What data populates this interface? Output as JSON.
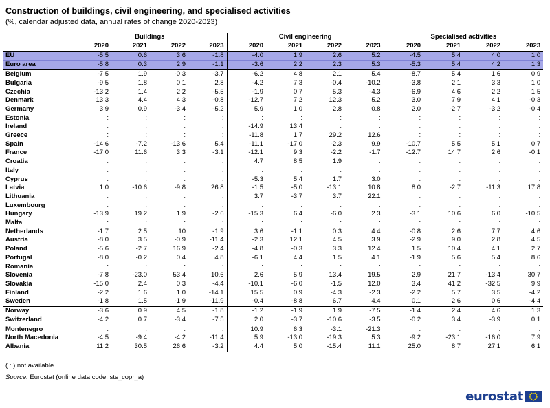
{
  "title": "Construction of buildings, civil engineering, and specialised activities",
  "subtitle": "(%, calendar adjusted data, annual rates of change 2020-2023)",
  "note": "( : ) not available",
  "source_label": "Source:",
  "source_text": "Eurostat (online data code: sts_copr_a)",
  "logo_text": "eurostat",
  "colors": {
    "highlight": "#a6a8e8",
    "logo": "#1d3f8f"
  },
  "chart_data": {
    "type": "table",
    "groups": [
      "Buildings",
      "Civil engineering",
      "Specialised activities"
    ],
    "years": [
      "2020",
      "2021",
      "2022",
      "2023"
    ],
    "rows": [
      {
        "label": "EU",
        "values": [
          "-5.5",
          "0.6",
          "3.6",
          "-1.8",
          "-4.0",
          "1.9",
          "2.6",
          "5.2",
          "-4.5",
          "5.4",
          "4.0",
          "1.0"
        ]
      },
      {
        "label": "Euro area",
        "values": [
          "-5.8",
          "0.3",
          "2.9",
          "-1.1",
          "-3.6",
          "2.2",
          "2.3",
          "5.3",
          "-5.3",
          "5.4",
          "4.2",
          "1.3"
        ]
      },
      {
        "label": "Belgium",
        "values": [
          "-7.5",
          "1.9",
          "-0.3",
          "-3.7",
          "-6.2",
          "4.8",
          "2.1",
          "5.4",
          "-8.7",
          "5.4",
          "1.6",
          "0.9"
        ]
      },
      {
        "label": "Bulgaria",
        "values": [
          "-9.5",
          "1.8",
          "0.1",
          "2.8",
          "-4.2",
          "7.3",
          "-0.4",
          "-10.2",
          "-3.8",
          "2.1",
          "3.3",
          "1.0"
        ]
      },
      {
        "label": "Czechia",
        "values": [
          "-13.2",
          "1.4",
          "2.2",
          "-5.5",
          "-1.9",
          "0.7",
          "5.3",
          "-4.3",
          "-6.9",
          "4.6",
          "2.2",
          "1.5"
        ]
      },
      {
        "label": "Denmark",
        "values": [
          "13.3",
          "4.4",
          "4.3",
          "-0.8",
          "-12.7",
          "7.2",
          "12.3",
          "5.2",
          "3.0",
          "7.9",
          "4.1",
          "-0.3"
        ]
      },
      {
        "label": "Germany",
        "values": [
          "3.9",
          "0.9",
          "-3.4",
          "-5.2",
          "5.9",
          "1.0",
          "2.8",
          "0.8",
          "2.0",
          "-2.7",
          "-3.2",
          "-0.4"
        ]
      },
      {
        "label": "Estonia",
        "values": [
          ":",
          ":",
          ":",
          ":",
          ":",
          ":",
          ":",
          ":",
          ":",
          ":",
          ":",
          ":"
        ]
      },
      {
        "label": "Ireland",
        "values": [
          ":",
          ":",
          ":",
          ":",
          "-14.9",
          "13.4",
          ":",
          ":",
          ":",
          ":",
          ":",
          ":"
        ]
      },
      {
        "label": "Greece",
        "values": [
          ":",
          ":",
          ":",
          ":",
          "-11.8",
          "1.7",
          "29.2",
          "12.6",
          ":",
          ":",
          ":",
          ":"
        ]
      },
      {
        "label": "Spain",
        "values": [
          "-14.6",
          "-7.2",
          "-13.6",
          "5.4",
          "-11.1",
          "-17.0",
          "-2.3",
          "9.9",
          "-10.7",
          "5.5",
          "5.1",
          "0.7"
        ]
      },
      {
        "label": "France",
        "values": [
          "-17.0",
          "11.6",
          "3.3",
          "-3.1",
          "-12.1",
          "9.3",
          "-2.2",
          "-1.7",
          "-12.7",
          "14.7",
          "2.6",
          "-0.1"
        ]
      },
      {
        "label": "Croatia",
        "values": [
          ":",
          ":",
          ":",
          ":",
          "4.7",
          "8.5",
          "1.9",
          ":",
          ":",
          ":",
          ":",
          ":"
        ]
      },
      {
        "label": "Italy",
        "values": [
          ":",
          ":",
          ":",
          ":",
          ":",
          ":",
          ":",
          ":",
          ":",
          ":",
          ":",
          ":"
        ]
      },
      {
        "label": "Cyprus",
        "values": [
          ":",
          ":",
          ":",
          ":",
          "-5.3",
          "5.4",
          "1.7",
          "3.0",
          ":",
          ":",
          ":",
          ":"
        ]
      },
      {
        "label": "Latvia",
        "values": [
          "1.0",
          "-10.6",
          "-9.8",
          "26.8",
          "-1.5",
          "-5.0",
          "-13.1",
          "10.8",
          "8.0",
          "-2.7",
          "-11.3",
          "17.8"
        ]
      },
      {
        "label": "Lithuania",
        "values": [
          ":",
          ":",
          ":",
          ":",
          "3.7",
          "-3.7",
          "3.7",
          "22.1",
          ":",
          ":",
          ":",
          ":"
        ]
      },
      {
        "label": "Luxembourg",
        "values": [
          ":",
          ":",
          ":",
          ":",
          ":",
          ":",
          ":",
          ":",
          ":",
          ":",
          ":",
          ":"
        ]
      },
      {
        "label": "Hungary",
        "values": [
          "-13.9",
          "19.2",
          "1.9",
          "-2.6",
          "-15.3",
          "6.4",
          "-6.0",
          "2.3",
          "-3.1",
          "10.6",
          "6.0",
          "-10.5"
        ]
      },
      {
        "label": "Malta",
        "values": [
          ":",
          ":",
          ":",
          ":",
          ":",
          ":",
          ":",
          ":",
          ":",
          ":",
          ":",
          ":"
        ]
      },
      {
        "label": "Netherlands",
        "values": [
          "-1.7",
          "2.5",
          "10",
          "-1.9",
          "3.6",
          "-1.1",
          "0.3",
          "4.4",
          "-0.8",
          "2.6",
          "7.7",
          "4.6"
        ]
      },
      {
        "label": "Austria",
        "values": [
          "-8.0",
          "3.5",
          "-0.9",
          "-11.4",
          "-2.3",
          "12.1",
          "4.5",
          "3.9",
          "-2.9",
          "9.0",
          "2.8",
          "4.5"
        ]
      },
      {
        "label": "Poland",
        "values": [
          "-5.6",
          "-2.7",
          "16.9",
          "-2.4",
          "-4.8",
          "-0.3",
          "3.3",
          "12.4",
          "1.5",
          "10.4",
          "4.1",
          "2.7"
        ]
      },
      {
        "label": "Portugal",
        "values": [
          "-8.0",
          "-0.2",
          "0.4",
          "4.8",
          "-6.1",
          "4.4",
          "1.5",
          "4.1",
          "-1.9",
          "5.6",
          "5.4",
          "8.6"
        ]
      },
      {
        "label": "Romania",
        "values": [
          ":",
          ":",
          ":",
          ":",
          ":",
          ":",
          ":",
          ":",
          ":",
          ":",
          ":",
          ":"
        ]
      },
      {
        "label": "Slovenia",
        "values": [
          "-7.8",
          "-23.0",
          "53.4",
          "10.6",
          "2.6",
          "5.9",
          "13.4",
          "19.5",
          "2.9",
          "21.7",
          "-13.4",
          "30.7"
        ]
      },
      {
        "label": "Slovakia",
        "values": [
          "-15.0",
          "2.4",
          "0.3",
          "-4.4",
          "-10.1",
          "-6.0",
          "-1.5",
          "12.0",
          "3.4",
          "41.2",
          "-32.5",
          "9.9"
        ]
      },
      {
        "label": "Finland",
        "values": [
          "-2.2",
          "1.6",
          "1.0",
          "-14.1",
          "15.5",
          "0.9",
          "-4.3",
          "-2.3",
          "-2.2",
          "5.7",
          "3.5",
          "-4.2"
        ]
      },
      {
        "label": "Sweden",
        "values": [
          "-1.8",
          "1.5",
          "-1.9",
          "-11.9",
          "-0.4",
          "-8.8",
          "6.7",
          "4.4",
          "0.1",
          "2.6",
          "0.6",
          "-4.4"
        ]
      },
      {
        "label": "Norway",
        "values": [
          "-3.6",
          "0.9",
          "4.5",
          "-1.8",
          "-1.2",
          "-1.9",
          "1.9",
          "-7.5",
          "-1.4",
          "2.4",
          "4.6",
          "1.3"
        ]
      },
      {
        "label": "Switzerland",
        "values": [
          "-4.2",
          "0.7",
          "-3.4",
          "-7.5",
          "2.0",
          "-3.7",
          "-10.6",
          "-3.5",
          "-0.2",
          "3.4",
          "-3.9",
          "0.1"
        ]
      },
      {
        "label": "Montenegro",
        "values": [
          ":",
          ":",
          ":",
          ":",
          "10.9",
          "6.3",
          "-3.1",
          "-21.3",
          ":",
          ":",
          ":",
          ":"
        ]
      },
      {
        "label": "North Macedonia",
        "values": [
          "-4.5",
          "-9.4",
          "-4.2",
          "-11.4",
          "5.9",
          "-13.0",
          "-19.3",
          "5.3",
          "-9.2",
          "-23.1",
          "-16.0",
          "7.9"
        ]
      },
      {
        "label": "Albania",
        "values": [
          "11.2",
          "30.5",
          "26.6",
          "-3.2",
          "4.4",
          "5.0",
          "-15.4",
          "11.1",
          "25.0",
          "8.7",
          "27.1",
          "6.1"
        ]
      }
    ]
  }
}
